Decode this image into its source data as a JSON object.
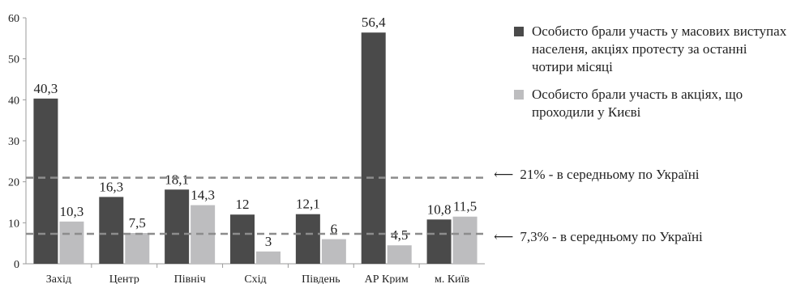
{
  "colors": {
    "series1": "#4a4a4a",
    "series2": "#bdbdbf",
    "axis": "#9a9a9a",
    "ref_line": "#8c8c8c"
  },
  "chart_data": {
    "type": "bar",
    "categories": [
      "Захід",
      "Центр",
      "Північ",
      "Схід",
      "Південь",
      "АР Крим",
      "м. Київ"
    ],
    "series": [
      {
        "name": "Особисто брали участь у масових виступах населеня, акціях протесту за останні чотири місяці",
        "values": [
          40.3,
          16.3,
          18.1,
          12,
          12.1,
          56.4,
          10.8
        ],
        "labels": [
          "40,3",
          "16,3",
          "18,1",
          "12",
          "12,1",
          "56,4",
          "10,8"
        ]
      },
      {
        "name": "Особисто брали участь в акціях, що проходили у Києві",
        "values": [
          10.3,
          7.5,
          14.3,
          3,
          6,
          4.5,
          11.5
        ],
        "labels": [
          "10,3",
          "7,5",
          "14,3",
          "3",
          "6",
          "4,5",
          "11,5"
        ]
      }
    ],
    "ylim": [
      0,
      60
    ],
    "yticks": [
      0,
      10,
      20,
      30,
      40,
      50,
      60
    ],
    "reference_lines": [
      {
        "value": 21,
        "label": "21% - в середньому по Україні"
      },
      {
        "value": 7.3,
        "label": "7,3% - в середньому по Україні"
      }
    ],
    "legend_position": "top-right",
    "grid": false
  },
  "arrow_glyph": "⟵"
}
